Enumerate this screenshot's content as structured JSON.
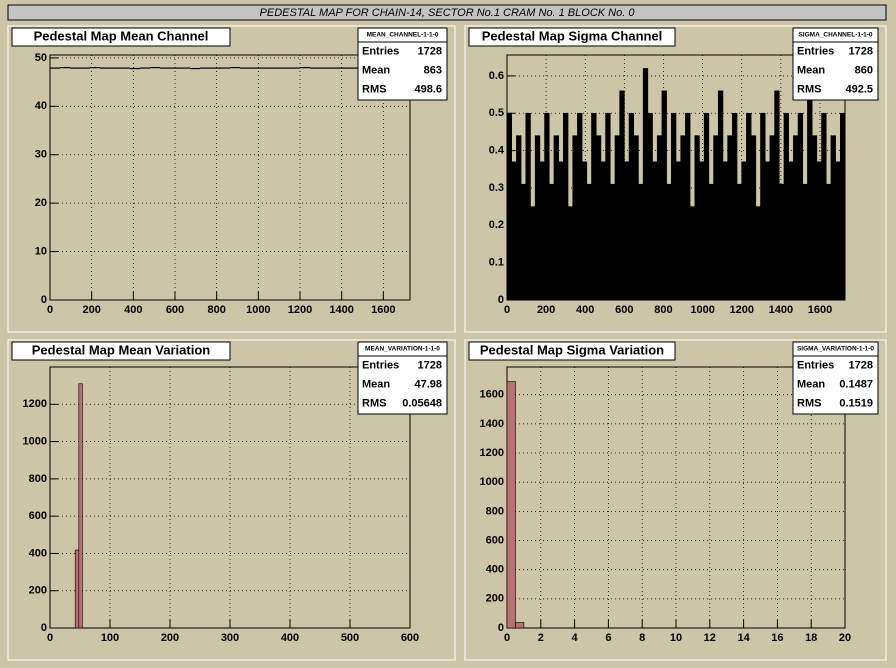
{
  "title": "PEDESTAL MAP FOR CHAIN-14, SECTOR No.1 CRAM No. 1 BLOCK No. 0",
  "chart_data": [
    {
      "type": "histogram",
      "title": "Pedestal Map Mean Channel",
      "color": "#000000",
      "filled": false,
      "grid": true,
      "bins": [
        0,
        48,
        96,
        144,
        192,
        240,
        288,
        336,
        384,
        432,
        480,
        528,
        576,
        624,
        672,
        720,
        768,
        816,
        864,
        912,
        960,
        1008,
        1056,
        1104,
        1152,
        1200,
        1248,
        1296,
        1344,
        1392,
        1440,
        1488,
        1536,
        1584,
        1632,
        1680,
        1728
      ],
      "counts": [
        47.9,
        48,
        47.9,
        47.9,
        48,
        47.9,
        47.9,
        47.9,
        47.8,
        47.9,
        48,
        47.9,
        47.9,
        47.9,
        47.8,
        47.9,
        47.9,
        47.9,
        48,
        47.9,
        47.9,
        47.9,
        47.9,
        47.9,
        47.9,
        48,
        47.9,
        47.9,
        47.9,
        47.9,
        47.9,
        47.9,
        48,
        47.9,
        47.9,
        47.9
      ],
      "xlim": [
        0,
        1728
      ],
      "ylim": [
        0,
        50.6
      ],
      "xticks": [
        0,
        200,
        400,
        600,
        800,
        1000,
        1200,
        1400,
        1600
      ],
      "yticks": [
        0,
        10,
        20,
        30,
        40,
        50
      ],
      "stats": {
        "name": "MEAN_CHANNEL-1-1-0",
        "rows": [
          {
            "label": "Entries",
            "value": 1728
          },
          {
            "label": "Mean",
            "value": 863
          },
          {
            "label": "RMS",
            "value": 498.6
          }
        ]
      }
    },
    {
      "type": "histogram",
      "title": "Pedestal Map Sigma Channel",
      "color": "#000000",
      "filled": true,
      "grid": true,
      "bins": [
        0,
        24,
        48,
        72,
        96,
        120,
        144,
        168,
        192,
        216,
        240,
        264,
        288,
        312,
        336,
        360,
        384,
        408,
        432,
        456,
        480,
        504,
        528,
        552,
        576,
        600,
        624,
        648,
        672,
        696,
        720,
        744,
        768,
        792,
        816,
        840,
        864,
        888,
        912,
        936,
        960,
        984,
        1008,
        1032,
        1056,
        1080,
        1104,
        1128,
        1152,
        1176,
        1200,
        1224,
        1248,
        1272,
        1296,
        1320,
        1344,
        1368,
        1392,
        1416,
        1440,
        1464,
        1488,
        1512,
        1536,
        1560,
        1584,
        1608,
        1632,
        1656,
        1680,
        1704,
        1728
      ],
      "counts": [
        0.5,
        0.37,
        0.44,
        0.31,
        0.5,
        0.25,
        0.44,
        0.37,
        0.5,
        0.31,
        0.44,
        0.37,
        0.5,
        0.25,
        0.44,
        0.5,
        0.37,
        0.31,
        0.5,
        0.44,
        0.37,
        0.5,
        0.31,
        0.44,
        0.56,
        0.37,
        0.5,
        0.44,
        0.31,
        0.62,
        0.5,
        0.37,
        0.44,
        0.56,
        0.31,
        0.5,
        0.37,
        0.44,
        0.5,
        0.25,
        0.44,
        0.37,
        0.5,
        0.31,
        0.44,
        0.56,
        0.37,
        0.44,
        0.5,
        0.31,
        0.37,
        0.5,
        0.44,
        0.25,
        0.5,
        0.37,
        0.44,
        0.56,
        0.31,
        0.5,
        0.37,
        0.44,
        0.5,
        0.31,
        0.62,
        0.44,
        0.37,
        0.5,
        0.31,
        0.44,
        0.37,
        0.5
      ],
      "xlim": [
        0,
        1728
      ],
      "ylim": [
        0,
        0.656
      ],
      "xticks": [
        0,
        200,
        400,
        600,
        800,
        1000,
        1200,
        1400,
        1600
      ],
      "yticks": [
        0,
        0.1,
        0.2,
        0.3,
        0.4,
        0.5,
        0.6
      ],
      "stats": {
        "name": "SIGMA_CHANNEL-1-1-0",
        "rows": [
          {
            "label": "Entries",
            "value": 1728
          },
          {
            "label": "Mean",
            "value": 860
          },
          {
            "label": "RMS",
            "value": 492.5
          }
        ]
      }
    },
    {
      "type": "histogram",
      "title": "Pedestal Map Mean Variation",
      "color": "#b87070",
      "filled": true,
      "grid": true,
      "bins": [
        42,
        48,
        54
      ],
      "counts": [
        418,
        1310
      ],
      "xlim": [
        0,
        600
      ],
      "ylim": [
        0,
        1400
      ],
      "xticks": [
        0,
        100,
        200,
        300,
        400,
        500,
        600
      ],
      "yticks": [
        0,
        200,
        400,
        600,
        800,
        1000,
        1200
      ],
      "stats": {
        "name": "MEAN_VARIATION-1-1-0",
        "rows": [
          {
            "label": "Entries",
            "value": 1728
          },
          {
            "label": "Mean",
            "value": 47.98
          },
          {
            "label": "RMS",
            "value": 0.05648
          }
        ]
      }
    },
    {
      "type": "histogram",
      "title": "Pedestal Map Sigma Variation",
      "color": "#b87070",
      "filled": true,
      "grid": true,
      "bins": [
        0,
        0.5,
        1
      ],
      "counts": [
        1690,
        38
      ],
      "xlim": [
        0,
        20
      ],
      "ylim": [
        0,
        1790
      ],
      "xticks": [
        0,
        2,
        4,
        6,
        8,
        10,
        12,
        14,
        16,
        18,
        20
      ],
      "yticks": [
        0,
        200,
        400,
        600,
        800,
        1000,
        1200,
        1400,
        1600
      ],
      "stats": {
        "name": "SIGMA_VARIATION-1-1-0",
        "rows": [
          {
            "label": "Entries",
            "value": 1728
          },
          {
            "label": "Mean",
            "value": 0.1487
          },
          {
            "label": "RMS",
            "value": 0.1519
          }
        ]
      }
    }
  ]
}
